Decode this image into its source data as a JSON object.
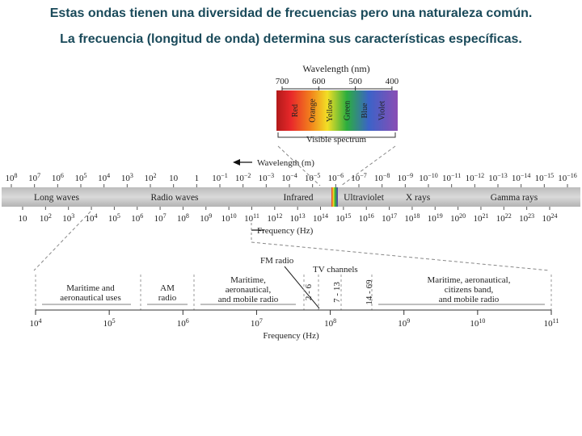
{
  "slide": {
    "title_line1": "Estas ondas tienen una diversidad de frecuencias pero una naturaleza común.",
    "title_line2": "La frecuencia (longitud de onda) determina sus características específicas."
  },
  "visible_spectrum": {
    "wavelength_title": "Wavelength (nm)",
    "ticks": [
      "700",
      "600",
      "500",
      "400"
    ],
    "colors": [
      {
        "label": "Red",
        "hex": "#e8282a"
      },
      {
        "label": "Orange",
        "hex": "#f2801c"
      },
      {
        "label": "Yellow",
        "hex": "#f2df25"
      },
      {
        "label": "Green",
        "hex": "#2cae3e"
      },
      {
        "label": "Blue",
        "hex": "#3b63c8"
      },
      {
        "label": "Violet",
        "hex": "#8a4db4"
      }
    ],
    "caption": "Visible spectrum"
  },
  "main_spectrum": {
    "wavelength_label": "Wavelength (m)",
    "wavelength_ticks": [
      {
        "b": "10",
        "e": "8"
      },
      {
        "b": "10",
        "e": "7"
      },
      {
        "b": "10",
        "e": "6"
      },
      {
        "b": "10",
        "e": "5"
      },
      {
        "b": "10",
        "e": "4"
      },
      {
        "b": "10",
        "e": "3"
      },
      {
        "b": "10",
        "e": "2"
      },
      {
        "b": "10",
        "e": ""
      },
      {
        "b": "1",
        "e": ""
      },
      {
        "b": "10",
        "e": "−1"
      },
      {
        "b": "10",
        "e": "−2"
      },
      {
        "b": "10",
        "e": "−3"
      },
      {
        "b": "10",
        "e": "−4"
      },
      {
        "b": "10",
        "e": "−5"
      },
      {
        "b": "10",
        "e": "−6"
      },
      {
        "b": "10",
        "e": "−7"
      },
      {
        "b": "10",
        "e": "−8"
      },
      {
        "b": "10",
        "e": "−9"
      },
      {
        "b": "10",
        "e": "−10"
      },
      {
        "b": "10",
        "e": "−11"
      },
      {
        "b": "10",
        "e": "−12"
      },
      {
        "b": "10",
        "e": "−13"
      },
      {
        "b": "10",
        "e": "−14"
      },
      {
        "b": "10",
        "e": "−15"
      },
      {
        "b": "10",
        "e": "−16"
      }
    ],
    "bands": [
      "Long waves",
      "Radio waves",
      "Infrared",
      "Ultraviolet",
      "X rays",
      "Gamma rays"
    ],
    "frequency_ticks": [
      {
        "b": "10",
        "e": ""
      },
      {
        "b": "10",
        "e": "2"
      },
      {
        "b": "10",
        "e": "3"
      },
      {
        "b": "10",
        "e": "4"
      },
      {
        "b": "10",
        "e": "5"
      },
      {
        "b": "10",
        "e": "6"
      },
      {
        "b": "10",
        "e": "7"
      },
      {
        "b": "10",
        "e": "8"
      },
      {
        "b": "10",
        "e": "9"
      },
      {
        "b": "10",
        "e": "10"
      },
      {
        "b": "10",
        "e": "11"
      },
      {
        "b": "10",
        "e": "12"
      },
      {
        "b": "10",
        "e": "13"
      },
      {
        "b": "10",
        "e": "14"
      },
      {
        "b": "10",
        "e": "15"
      },
      {
        "b": "10",
        "e": "16"
      },
      {
        "b": "10",
        "e": "17"
      },
      {
        "b": "10",
        "e": "18"
      },
      {
        "b": "10",
        "e": "19"
      },
      {
        "b": "10",
        "e": "20"
      },
      {
        "b": "10",
        "e": "21"
      },
      {
        "b": "10",
        "e": "22"
      },
      {
        "b": "10",
        "e": "23"
      },
      {
        "b": "10",
        "e": "24"
      }
    ],
    "frequency_label": "Frequency (Hz)"
  },
  "radio_detail": {
    "fm_label": "FM radio",
    "tv_label": "TV channels",
    "channels": [
      "2 - 6",
      "7 - 13",
      "14 - 69"
    ],
    "groups": [
      [
        "Maritime and",
        "aeronautical uses"
      ],
      [
        "AM",
        "radio"
      ],
      [
        "Maritime,",
        "aeronautical,",
        "and mobile radio"
      ],
      [
        "Maritime, aeronautical,",
        "citizens band,",
        "and mobile radio"
      ]
    ],
    "frequency_ticks": [
      {
        "b": "10",
        "e": "4"
      },
      {
        "b": "10",
        "e": "5"
      },
      {
        "b": "10",
        "e": "6"
      },
      {
        "b": "10",
        "e": "7"
      },
      {
        "b": "10",
        "e": "8"
      },
      {
        "b": "10",
        "e": "9"
      },
      {
        "b": "10",
        "e": "10"
      },
      {
        "b": "10",
        "e": "11"
      }
    ],
    "frequency_label": "Frequency (Hz)"
  }
}
